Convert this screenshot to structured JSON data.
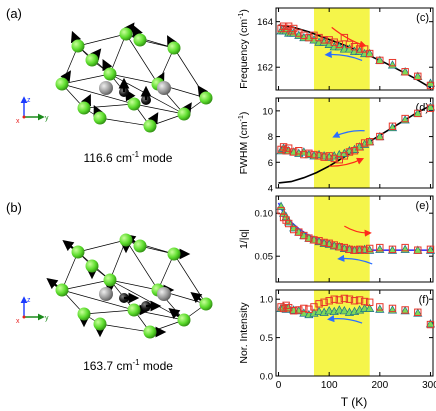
{
  "left": {
    "panel_a_label": "(a)",
    "panel_b_label": "(b)",
    "mode_a_caption": "116.6 cm-1 mode",
    "mode_b_caption": "163.7 cm-1 mode",
    "axis_z": "z",
    "axis_y": "y",
    "axis_x": "x"
  },
  "shared_xlabel": "T (K)",
  "colors": {
    "highlight": "#f5f54a",
    "square": "#e8372b",
    "triangle_fill": "#7ed957",
    "triangle_edge": "#1c6e8a",
    "curve_black": "#000000",
    "curve_blue": "#3a3aff",
    "arrow_red": "#ff2a1a",
    "arrow_blue": "#2b6fff",
    "atom_green": "#5cdc2c",
    "atom_gray": "#9a9a9a"
  },
  "chart_data": [
    {
      "type": "scatter",
      "panel": "(c)",
      "ylabel": "Frequency (cm-1)",
      "xlim": [
        -5,
        305
      ],
      "ylim": [
        161,
        164.6
      ],
      "xticks": [
        0,
        100,
        200,
        300
      ],
      "yticks": [
        162,
        164
      ],
      "highlight_x": [
        70,
        180
      ],
      "series": [
        {
          "marker": "square",
          "x": [
            5,
            10,
            15,
            20,
            25,
            30,
            40,
            50,
            60,
            70,
            80,
            90,
            100,
            110,
            120,
            130,
            140,
            150,
            160,
            170,
            180,
            200,
            225,
            250,
            275,
            300
          ],
          "y": [
            163.7,
            163.8,
            163.7,
            163.8,
            163.6,
            163.7,
            163.5,
            163.4,
            163.3,
            163.4,
            163.3,
            163.2,
            163.2,
            163.1,
            163.0,
            163.3,
            163.0,
            162.9,
            162.8,
            162.8,
            162.6,
            162.3,
            162.2,
            161.8,
            161.6,
            161.2
          ]
        },
        {
          "marker": "triangle",
          "x": [
            5,
            10,
            15,
            20,
            25,
            30,
            40,
            50,
            60,
            70,
            80,
            90,
            100,
            110,
            120,
            130,
            140,
            150,
            160,
            170,
            180,
            200,
            225,
            250,
            275,
            300
          ],
          "y": [
            163.6,
            163.6,
            163.6,
            163.5,
            163.5,
            163.5,
            163.4,
            163.3,
            163.3,
            163.2,
            163.1,
            163.1,
            163.0,
            162.9,
            162.9,
            162.8,
            162.8,
            162.7,
            162.7,
            162.6,
            162.6,
            162.3,
            162.1,
            161.8,
            161.6,
            161.3
          ]
        },
        {
          "marker": "line",
          "x": [
            0,
            30,
            60,
            90,
            120,
            150,
            180,
            210,
            240,
            270,
            300
          ],
          "y": [
            163.85,
            163.75,
            163.55,
            163.3,
            163.05,
            162.8,
            162.5,
            162.2,
            161.85,
            161.5,
            161.1
          ]
        }
      ],
      "arrows": [
        {
          "color": "red",
          "from": [
            105,
            163.75
          ],
          "to": [
            170,
            162.95
          ]
        },
        {
          "color": "blue",
          "from": [
            165,
            162.3
          ],
          "to": [
            95,
            162.55
          ]
        }
      ]
    },
    {
      "type": "scatter",
      "panel": "(d)",
      "ylabel": "FWHM (cm-1)",
      "xlim": [
        -5,
        305
      ],
      "ylim": [
        4,
        11
      ],
      "xticks": [
        0,
        100,
        200,
        300
      ],
      "yticks": [
        4,
        6,
        8,
        10
      ],
      "highlight_x": [
        70,
        180
      ],
      "series": [
        {
          "marker": "square",
          "x": [
            5,
            10,
            15,
            20,
            30,
            40,
            50,
            60,
            70,
            80,
            90,
            100,
            110,
            120,
            130,
            140,
            150,
            160,
            170,
            180,
            200,
            225,
            250,
            275,
            300
          ],
          "y": [
            7.0,
            7.2,
            6.9,
            7.1,
            6.8,
            6.9,
            6.6,
            6.7,
            6.6,
            6.5,
            6.4,
            6.5,
            6.3,
            6.2,
            6.5,
            6.8,
            6.9,
            7.2,
            7.5,
            7.6,
            8.0,
            8.8,
            9.4,
            9.8,
            10.2
          ]
        },
        {
          "marker": "triangle",
          "x": [
            5,
            10,
            15,
            20,
            30,
            40,
            50,
            60,
            70,
            80,
            90,
            100,
            110,
            120,
            130,
            140,
            150,
            160,
            170,
            180,
            200,
            225,
            250,
            275,
            300
          ],
          "y": [
            6.9,
            7.1,
            7.0,
            6.9,
            6.8,
            6.7,
            6.8,
            6.6,
            6.5,
            6.6,
            6.5,
            6.4,
            6.5,
            6.6,
            6.7,
            6.9,
            7.0,
            7.2,
            7.4,
            7.6,
            8.0,
            8.7,
            9.3,
            9.8,
            10.3
          ]
        },
        {
          "marker": "line",
          "x": [
            0,
            25,
            50,
            75,
            100,
            125,
            150,
            175,
            200,
            225,
            250,
            275,
            300
          ],
          "y": [
            4.4,
            4.5,
            4.8,
            5.2,
            5.7,
            6.3,
            6.9,
            7.5,
            8.1,
            8.7,
            9.3,
            9.9,
            10.4
          ]
        }
      ],
      "arrows": [
        {
          "color": "blue",
          "from": [
            170,
            8.45
          ],
          "to": [
            110,
            8.0
          ]
        },
        {
          "color": "red",
          "from": [
            100,
            5.7
          ],
          "to": [
            165,
            6.25
          ]
        }
      ]
    },
    {
      "type": "scatter",
      "panel": "(e)",
      "ylabel": "1/|q|",
      "xlim": [
        -5,
        305
      ],
      "ylim": [
        0.02,
        0.12
      ],
      "xticks": [
        0,
        100,
        200,
        300
      ],
      "yticks": [
        0.05,
        0.1
      ],
      "highlight_x": [
        70,
        180
      ],
      "series": [
        {
          "marker": "square",
          "x": [
            5,
            10,
            15,
            20,
            30,
            40,
            50,
            60,
            70,
            80,
            90,
            100,
            110,
            120,
            130,
            140,
            150,
            160,
            170,
            180,
            200,
            225,
            250,
            275,
            300
          ],
          "y": [
            0.103,
            0.095,
            0.092,
            0.088,
            0.081,
            0.078,
            0.074,
            0.071,
            0.069,
            0.068,
            0.066,
            0.065,
            0.063,
            0.061,
            0.06,
            0.058,
            0.057,
            0.058,
            0.057,
            0.059,
            0.06,
            0.058,
            0.06,
            0.057,
            0.058
          ]
        },
        {
          "marker": "triangle",
          "x": [
            5,
            10,
            15,
            20,
            30,
            40,
            50,
            60,
            70,
            80,
            90,
            100,
            110,
            120,
            130,
            140,
            150,
            160,
            170,
            180,
            200,
            225,
            250,
            275,
            300
          ],
          "y": [
            0.108,
            0.1,
            0.096,
            0.09,
            0.083,
            0.078,
            0.074,
            0.071,
            0.069,
            0.067,
            0.065,
            0.064,
            0.062,
            0.061,
            0.059,
            0.058,
            0.057,
            0.057,
            0.058,
            0.057,
            0.058,
            0.057,
            0.058,
            0.057,
            0.057
          ]
        },
        {
          "marker": "line",
          "x": [
            0,
            10,
            20,
            40,
            60,
            80,
            100,
            125,
            150,
            175,
            200,
            250,
            300
          ],
          "y": [
            0.112,
            0.1,
            0.092,
            0.082,
            0.074,
            0.069,
            0.065,
            0.061,
            0.058,
            0.057,
            0.057,
            0.057,
            0.057
          ]
        }
      ],
      "arrows": [
        {
          "color": "red",
          "from": [
            130,
            0.085
          ],
          "to": [
            180,
            0.077
          ]
        },
        {
          "color": "blue",
          "from": [
            185,
            0.041
          ],
          "to": [
            120,
            0.047
          ]
        }
      ]
    },
    {
      "type": "scatter",
      "panel": "(f)",
      "ylabel": "Nor. Intensity",
      "xlim": [
        -5,
        305
      ],
      "ylim": [
        0.0,
        1.12
      ],
      "xticks": [
        0,
        100,
        200,
        300
      ],
      "xticklabels": [
        "0",
        "100",
        "200",
        "300"
      ],
      "yticks": [
        0.0,
        0.5,
        1.0
      ],
      "yticklabels": [
        "0.0",
        "0.5",
        "1.0"
      ],
      "xlabel": "T (K)",
      "highlight_x": [
        70,
        180
      ],
      "series": [
        {
          "marker": "square",
          "x": [
            5,
            10,
            15,
            20,
            30,
            40,
            50,
            60,
            70,
            80,
            90,
            100,
            110,
            120,
            130,
            140,
            150,
            160,
            170,
            180,
            200,
            225,
            250,
            275,
            300
          ],
          "y": [
            0.9,
            0.88,
            0.92,
            0.89,
            0.85,
            0.86,
            0.88,
            0.87,
            0.9,
            0.94,
            0.96,
            0.98,
            1.0,
            0.99,
            1.01,
            1.0,
            0.98,
            0.99,
            0.97,
            0.96,
            0.9,
            0.88,
            0.86,
            0.83,
            0.67
          ]
        },
        {
          "marker": "triangle",
          "x": [
            5,
            10,
            15,
            20,
            30,
            40,
            50,
            60,
            70,
            80,
            90,
            100,
            110,
            120,
            130,
            140,
            150,
            160,
            170,
            180,
            200,
            225,
            250,
            275,
            300
          ],
          "y": [
            0.88,
            0.9,
            0.87,
            0.89,
            0.86,
            0.85,
            0.82,
            0.8,
            0.82,
            0.84,
            0.83,
            0.85,
            0.84,
            0.86,
            0.85,
            0.83,
            0.84,
            0.86,
            0.88,
            0.88,
            0.87,
            0.86,
            0.85,
            0.82,
            0.68
          ]
        }
      ],
      "arrows": [
        {
          "color": "blue",
          "from": [
            165,
            0.69
          ],
          "to": [
            100,
            0.74
          ]
        }
      ]
    }
  ]
}
